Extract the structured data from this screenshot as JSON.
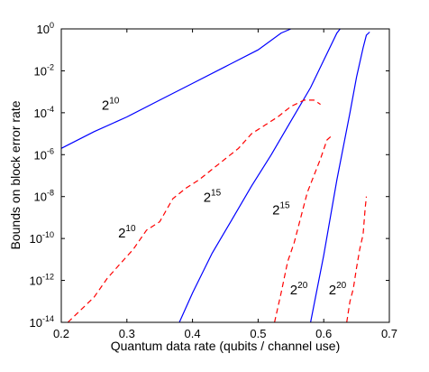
{
  "chart_data": {
    "type": "line",
    "xlabel": "Quantum data rate (qubits / channel use)",
    "ylabel": "Bounds on block error rate",
    "xlim": [
      0.2,
      0.7
    ],
    "ylim_exp": [
      -14,
      0
    ],
    "yscale": "log",
    "grid": false,
    "x_ticks": [
      "0.2",
      "0.3",
      "0.4",
      "0.5",
      "0.6",
      "0.7"
    ],
    "y_tick_base": "10",
    "y_tick_exponents": [
      "0",
      "-2",
      "-4",
      "-6",
      "-8",
      "-10",
      "-12",
      "-14"
    ],
    "colors": {
      "solid": "#0000ff",
      "dashed": "#ff0000",
      "axes": "#000000"
    },
    "series": [
      {
        "style": "solid",
        "points": [
          [
            0.2,
            -5.7
          ],
          [
            0.25,
            -4.9
          ],
          [
            0.3,
            -4.2
          ],
          [
            0.35,
            -3.4
          ],
          [
            0.4,
            -2.6
          ],
          [
            0.45,
            -1.8
          ],
          [
            0.5,
            -1.0
          ],
          [
            0.535,
            -0.2
          ],
          [
            0.55,
            0
          ]
        ]
      },
      {
        "style": "solid",
        "points": [
          [
            0.38,
            -14
          ],
          [
            0.4,
            -12.6
          ],
          [
            0.43,
            -10.7
          ],
          [
            0.46,
            -9.1
          ],
          [
            0.49,
            -7.5
          ],
          [
            0.52,
            -6.0
          ],
          [
            0.55,
            -4.4
          ],
          [
            0.58,
            -2.8
          ],
          [
            0.6,
            -1.5
          ],
          [
            0.62,
            -0.2
          ],
          [
            0.625,
            0
          ]
        ]
      },
      {
        "style": "solid",
        "points": [
          [
            0.58,
            -14
          ],
          [
            0.6,
            -10.8
          ],
          [
            0.62,
            -7.2
          ],
          [
            0.64,
            -4.0
          ],
          [
            0.65,
            -2.3
          ],
          [
            0.66,
            -0.9
          ],
          [
            0.665,
            -0.3
          ],
          [
            0.67,
            -0.15
          ]
        ]
      },
      {
        "style": "dashed",
        "points": [
          [
            0.21,
            -14
          ],
          [
            0.23,
            -13.4
          ],
          [
            0.25,
            -12.8
          ],
          [
            0.27,
            -11.9
          ],
          [
            0.29,
            -11.2
          ],
          [
            0.31,
            -10.5
          ],
          [
            0.33,
            -9.6
          ],
          [
            0.35,
            -9.2
          ],
          [
            0.37,
            -8.1
          ],
          [
            0.39,
            -7.6
          ],
          [
            0.41,
            -7.2
          ],
          [
            0.43,
            -6.7
          ],
          [
            0.45,
            -6.2
          ],
          [
            0.47,
            -5.7
          ],
          [
            0.49,
            -5.0
          ],
          [
            0.51,
            -4.6
          ],
          [
            0.53,
            -4.2
          ],
          [
            0.55,
            -3.7
          ],
          [
            0.57,
            -3.4
          ],
          [
            0.585,
            -3.4
          ],
          [
            0.595,
            -3.6
          ]
        ]
      },
      {
        "style": "dashed",
        "points": [
          [
            0.525,
            -14
          ],
          [
            0.535,
            -12.6
          ],
          [
            0.545,
            -11.1
          ],
          [
            0.555,
            -10.2
          ],
          [
            0.565,
            -9.0
          ],
          [
            0.575,
            -7.8
          ],
          [
            0.585,
            -7.0
          ],
          [
            0.595,
            -6.2
          ],
          [
            0.605,
            -5.3
          ],
          [
            0.612,
            -5.1
          ]
        ]
      },
      {
        "style": "dashed",
        "points": [
          [
            0.635,
            -14
          ],
          [
            0.64,
            -13.0
          ],
          [
            0.645,
            -12.4
          ],
          [
            0.65,
            -11.4
          ],
          [
            0.655,
            -10.5
          ],
          [
            0.66,
            -9.8
          ],
          [
            0.663,
            -8.6
          ],
          [
            0.665,
            -8.0
          ]
        ]
      }
    ],
    "annotations": [
      {
        "base": "2",
        "exp": "10",
        "x": 0.275,
        "y": -3.6
      },
      {
        "base": "2",
        "exp": "10",
        "x": 0.3,
        "y": -9.7
      },
      {
        "base": "2",
        "exp": "15",
        "x": 0.43,
        "y": -8.0
      },
      {
        "base": "2",
        "exp": "15",
        "x": 0.535,
        "y": -8.6
      },
      {
        "base": "2",
        "exp": "20",
        "x": 0.562,
        "y": -12.4
      },
      {
        "base": "2",
        "exp": "20",
        "x": 0.621,
        "y": -12.4
      }
    ]
  }
}
